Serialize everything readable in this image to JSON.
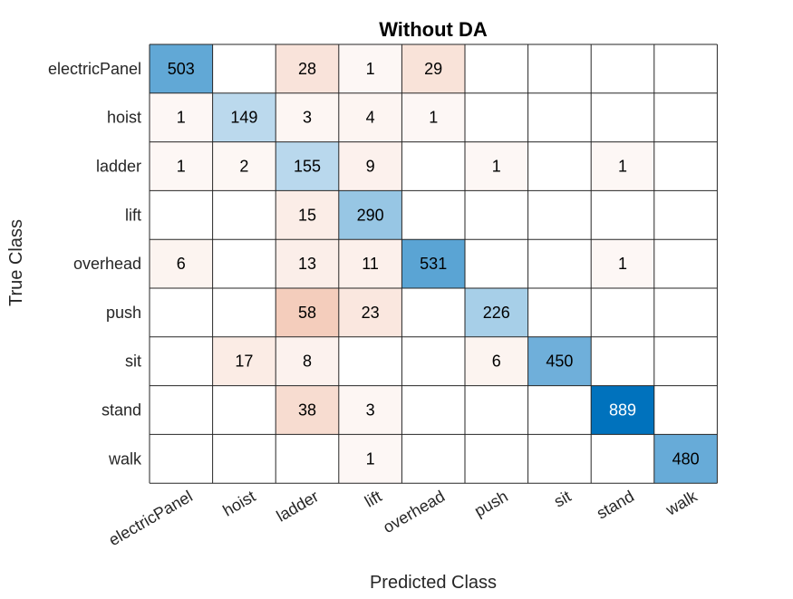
{
  "chart_data": {
    "type": "heatmap",
    "title": "Without DA",
    "xlabel": "Predicted Class",
    "ylabel": "True Class",
    "x_categories": [
      "electricPanel",
      "hoist",
      "ladder",
      "lift",
      "overhead",
      "push",
      "sit",
      "stand",
      "walk"
    ],
    "y_categories": [
      "electricPanel",
      "hoist",
      "ladder",
      "lift",
      "overhead",
      "push",
      "sit",
      "stand",
      "walk"
    ],
    "matrix": [
      [
        503,
        null,
        28,
        1,
        29,
        null,
        null,
        null,
        null
      ],
      [
        1,
        149,
        3,
        4,
        1,
        null,
        null,
        null,
        null
      ],
      [
        1,
        2,
        155,
        9,
        null,
        1,
        null,
        1,
        null
      ],
      [
        null,
        null,
        15,
        290,
        null,
        null,
        null,
        null,
        null
      ],
      [
        6,
        null,
        13,
        11,
        531,
        null,
        null,
        1,
        null
      ],
      [
        null,
        null,
        58,
        23,
        null,
        226,
        null,
        null,
        null
      ],
      [
        null,
        17,
        8,
        null,
        null,
        6,
        450,
        null,
        null
      ],
      [
        null,
        null,
        38,
        3,
        null,
        null,
        null,
        889,
        null
      ],
      [
        null,
        null,
        null,
        1,
        null,
        null,
        null,
        null,
        480
      ]
    ],
    "colors": {
      "diagonal_max": "#0072bd",
      "diagonal_min": "#ffffff",
      "off_diagonal_max": "#d95319",
      "off_diagonal_min": "#ffffff",
      "grid": "#262626",
      "text_dark": "#000000",
      "text_light": "#ffffff"
    }
  }
}
